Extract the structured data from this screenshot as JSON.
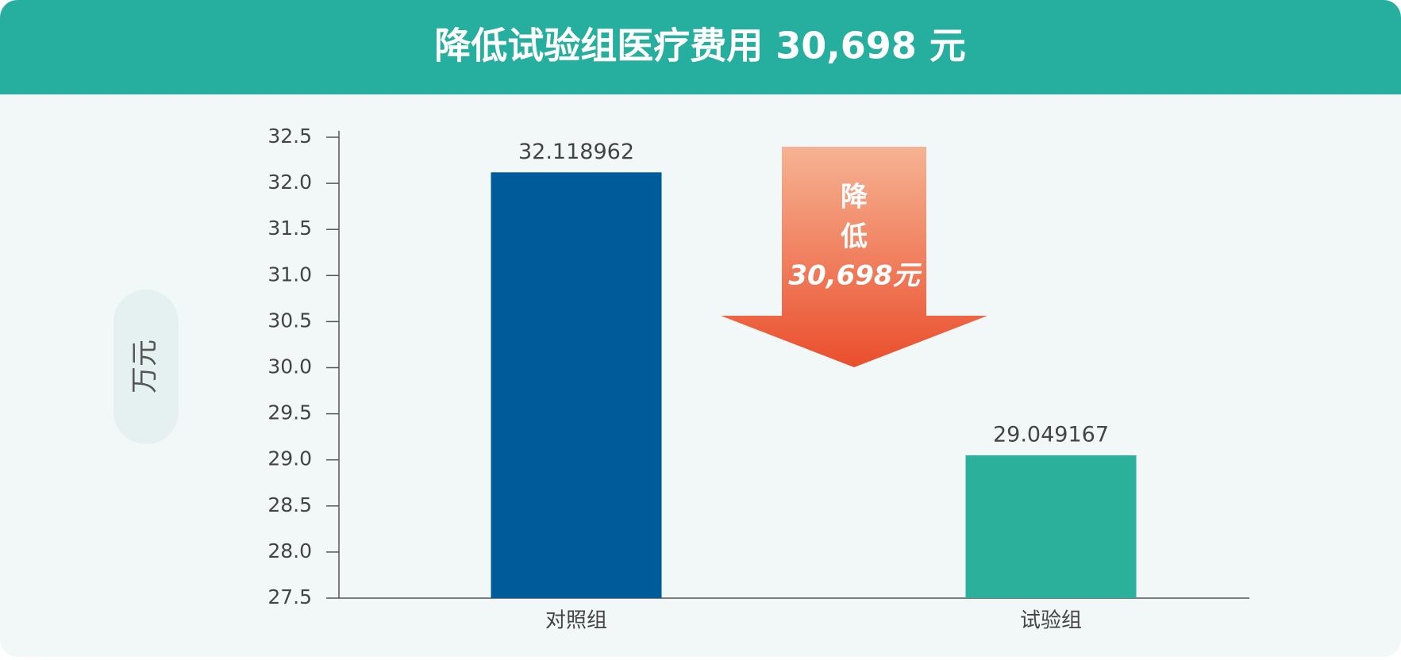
{
  "chart_data": {
    "type": "bar",
    "title": "降低试验组医疗费用 30,698 元",
    "y_label": "万元",
    "annotation": [
      "降",
      "低",
      "30,698元"
    ],
    "categories": [
      "对照组",
      "试验组"
    ],
    "values": [
      32.118962,
      29.049167
    ],
    "colors": [
      "#005b9a",
      "#2bb09c"
    ],
    "ylim": [
      27.5,
      32.5
    ],
    "yticks": [
      27.5,
      {
        "value": 28.0,
        "label": "28.0"
      },
      28.5,
      {
        "value": 29.0,
        "label": "29.0"
      },
      29.5,
      {
        "value": 30.0,
        "label": "30.0"
      },
      30.5,
      {
        "value": 31.0,
        "label": "31.0"
      },
      31.5,
      {
        "value": 32.0,
        "label": "32.0"
      },
      32.5
    ]
  }
}
